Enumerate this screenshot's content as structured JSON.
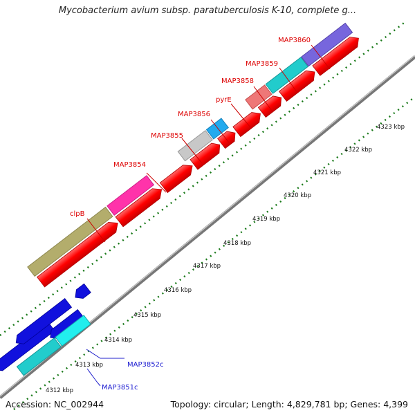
{
  "title": "Mycobacterium avium subsp. paratuberculosis K-10, complete g...",
  "footer": {
    "accession": "Accession: NC_002944",
    "summary": "Topology: circular; Length: 4,829,781 bp; Genes: 4,399"
  },
  "colors": {
    "cds_forward": "#ff0000",
    "label_forward": "#dd0000",
    "label_reverse": "#1a1ad0",
    "backbone": "#8c8c8c",
    "gc_dots": "#1a7a1a"
  },
  "kbp_ticks": [
    "4312 kbp",
    "4313 kbp",
    "4314 kbp",
    "4315 kbp",
    "4316 kbp",
    "4317 kbp",
    "4318 kbp",
    "4319 kbp",
    "4320 kbp",
    "4321 kbp",
    "4322 kbp",
    "4323 kbp"
  ],
  "gene_labels": {
    "forward": [
      "clpB",
      "MAP3854",
      "MAP3855",
      "MAP3856",
      "pyrE",
      "MAP3858",
      "MAP3859",
      "MAP3860"
    ],
    "reverse": [
      "MAP3852c",
      "MAP3851c"
    ]
  }
}
